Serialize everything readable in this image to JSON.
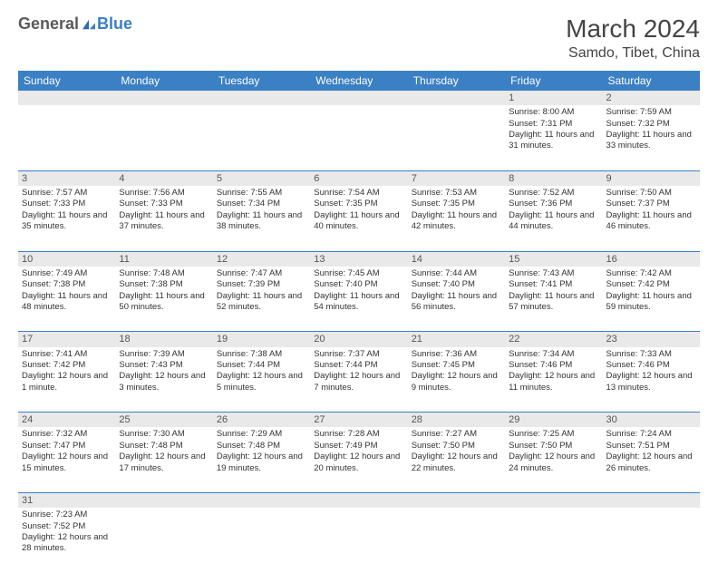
{
  "logo": {
    "part1": "General",
    "part2": "Blue"
  },
  "title": {
    "month_year": "March 2024",
    "location": "Samdo, Tibet, China"
  },
  "colors": {
    "header_bg": "#3b7fc4",
    "header_text": "#ffffff",
    "daynum_bg": "#e9e9e9",
    "cell_border": "#3b7fc4",
    "text": "#333333",
    "logo_gray": "#5a5a5a",
    "logo_blue": "#3b7fc4"
  },
  "weekdays": [
    "Sunday",
    "Monday",
    "Tuesday",
    "Wednesday",
    "Thursday",
    "Friday",
    "Saturday"
  ],
  "weeks": [
    {
      "days": [
        null,
        null,
        null,
        null,
        null,
        {
          "n": "1",
          "sunrise": "Sunrise: 8:00 AM",
          "sunset": "Sunset: 7:31 PM",
          "daylight": "Daylight: 11 hours and 31 minutes."
        },
        {
          "n": "2",
          "sunrise": "Sunrise: 7:59 AM",
          "sunset": "Sunset: 7:32 PM",
          "daylight": "Daylight: 11 hours and 33 minutes."
        }
      ]
    },
    {
      "days": [
        {
          "n": "3",
          "sunrise": "Sunrise: 7:57 AM",
          "sunset": "Sunset: 7:33 PM",
          "daylight": "Daylight: 11 hours and 35 minutes."
        },
        {
          "n": "4",
          "sunrise": "Sunrise: 7:56 AM",
          "sunset": "Sunset: 7:33 PM",
          "daylight": "Daylight: 11 hours and 37 minutes."
        },
        {
          "n": "5",
          "sunrise": "Sunrise: 7:55 AM",
          "sunset": "Sunset: 7:34 PM",
          "daylight": "Daylight: 11 hours and 38 minutes."
        },
        {
          "n": "6",
          "sunrise": "Sunrise: 7:54 AM",
          "sunset": "Sunset: 7:35 PM",
          "daylight": "Daylight: 11 hours and 40 minutes."
        },
        {
          "n": "7",
          "sunrise": "Sunrise: 7:53 AM",
          "sunset": "Sunset: 7:35 PM",
          "daylight": "Daylight: 11 hours and 42 minutes."
        },
        {
          "n": "8",
          "sunrise": "Sunrise: 7:52 AM",
          "sunset": "Sunset: 7:36 PM",
          "daylight": "Daylight: 11 hours and 44 minutes."
        },
        {
          "n": "9",
          "sunrise": "Sunrise: 7:50 AM",
          "sunset": "Sunset: 7:37 PM",
          "daylight": "Daylight: 11 hours and 46 minutes."
        }
      ]
    },
    {
      "days": [
        {
          "n": "10",
          "sunrise": "Sunrise: 7:49 AM",
          "sunset": "Sunset: 7:38 PM",
          "daylight": "Daylight: 11 hours and 48 minutes."
        },
        {
          "n": "11",
          "sunrise": "Sunrise: 7:48 AM",
          "sunset": "Sunset: 7:38 PM",
          "daylight": "Daylight: 11 hours and 50 minutes."
        },
        {
          "n": "12",
          "sunrise": "Sunrise: 7:47 AM",
          "sunset": "Sunset: 7:39 PM",
          "daylight": "Daylight: 11 hours and 52 minutes."
        },
        {
          "n": "13",
          "sunrise": "Sunrise: 7:45 AM",
          "sunset": "Sunset: 7:40 PM",
          "daylight": "Daylight: 11 hours and 54 minutes."
        },
        {
          "n": "14",
          "sunrise": "Sunrise: 7:44 AM",
          "sunset": "Sunset: 7:40 PM",
          "daylight": "Daylight: 11 hours and 56 minutes."
        },
        {
          "n": "15",
          "sunrise": "Sunrise: 7:43 AM",
          "sunset": "Sunset: 7:41 PM",
          "daylight": "Daylight: 11 hours and 57 minutes."
        },
        {
          "n": "16",
          "sunrise": "Sunrise: 7:42 AM",
          "sunset": "Sunset: 7:42 PM",
          "daylight": "Daylight: 11 hours and 59 minutes."
        }
      ]
    },
    {
      "days": [
        {
          "n": "17",
          "sunrise": "Sunrise: 7:41 AM",
          "sunset": "Sunset: 7:42 PM",
          "daylight": "Daylight: 12 hours and 1 minute."
        },
        {
          "n": "18",
          "sunrise": "Sunrise: 7:39 AM",
          "sunset": "Sunset: 7:43 PM",
          "daylight": "Daylight: 12 hours and 3 minutes."
        },
        {
          "n": "19",
          "sunrise": "Sunrise: 7:38 AM",
          "sunset": "Sunset: 7:44 PM",
          "daylight": "Daylight: 12 hours and 5 minutes."
        },
        {
          "n": "20",
          "sunrise": "Sunrise: 7:37 AM",
          "sunset": "Sunset: 7:44 PM",
          "daylight": "Daylight: 12 hours and 7 minutes."
        },
        {
          "n": "21",
          "sunrise": "Sunrise: 7:36 AM",
          "sunset": "Sunset: 7:45 PM",
          "daylight": "Daylight: 12 hours and 9 minutes."
        },
        {
          "n": "22",
          "sunrise": "Sunrise: 7:34 AM",
          "sunset": "Sunset: 7:46 PM",
          "daylight": "Daylight: 12 hours and 11 minutes."
        },
        {
          "n": "23",
          "sunrise": "Sunrise: 7:33 AM",
          "sunset": "Sunset: 7:46 PM",
          "daylight": "Daylight: 12 hours and 13 minutes."
        }
      ]
    },
    {
      "days": [
        {
          "n": "24",
          "sunrise": "Sunrise: 7:32 AM",
          "sunset": "Sunset: 7:47 PM",
          "daylight": "Daylight: 12 hours and 15 minutes."
        },
        {
          "n": "25",
          "sunrise": "Sunrise: 7:30 AM",
          "sunset": "Sunset: 7:48 PM",
          "daylight": "Daylight: 12 hours and 17 minutes."
        },
        {
          "n": "26",
          "sunrise": "Sunrise: 7:29 AM",
          "sunset": "Sunset: 7:48 PM",
          "daylight": "Daylight: 12 hours and 19 minutes."
        },
        {
          "n": "27",
          "sunrise": "Sunrise: 7:28 AM",
          "sunset": "Sunset: 7:49 PM",
          "daylight": "Daylight: 12 hours and 20 minutes."
        },
        {
          "n": "28",
          "sunrise": "Sunrise: 7:27 AM",
          "sunset": "Sunset: 7:50 PM",
          "daylight": "Daylight: 12 hours and 22 minutes."
        },
        {
          "n": "29",
          "sunrise": "Sunrise: 7:25 AM",
          "sunset": "Sunset: 7:50 PM",
          "daylight": "Daylight: 12 hours and 24 minutes."
        },
        {
          "n": "30",
          "sunrise": "Sunrise: 7:24 AM",
          "sunset": "Sunset: 7:51 PM",
          "daylight": "Daylight: 12 hours and 26 minutes."
        }
      ]
    },
    {
      "days": [
        {
          "n": "31",
          "sunrise": "Sunrise: 7:23 AM",
          "sunset": "Sunset: 7:52 PM",
          "daylight": "Daylight: 12 hours and 28 minutes."
        },
        null,
        null,
        null,
        null,
        null,
        null
      ]
    }
  ]
}
